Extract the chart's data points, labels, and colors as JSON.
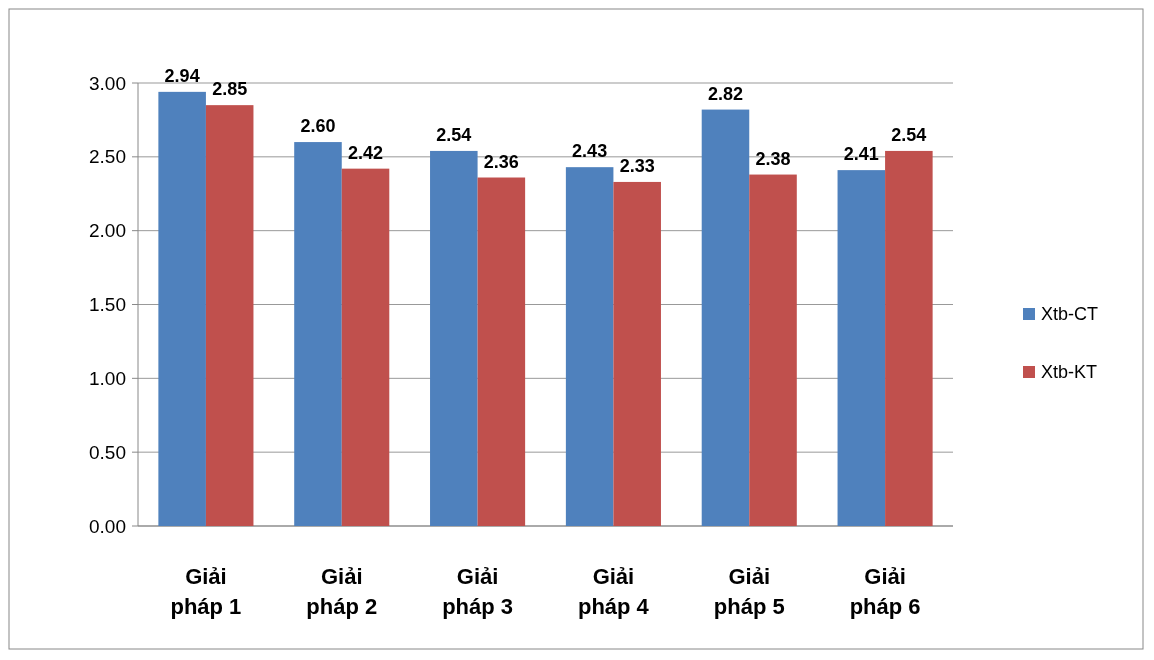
{
  "chart_data": {
    "type": "bar",
    "categories": [
      "Giải pháp 1",
      "Giải pháp 2",
      "Giải pháp 3",
      "Giải pháp 4",
      "Giải pháp 5",
      "Giải pháp 6"
    ],
    "series": [
      {
        "name": "Xtb-CT",
        "color": "#4f81bd",
        "values": [
          2.94,
          2.6,
          2.54,
          2.43,
          2.82,
          2.41
        ],
        "value_labels": [
          "2.94",
          "2.60",
          "2.54",
          "2.43",
          "2.82",
          "2.41"
        ]
      },
      {
        "name": "Xtb-KT",
        "color": "#c0504d",
        "values": [
          2.85,
          2.42,
          2.36,
          2.33,
          2.38,
          2.54
        ],
        "value_labels": [
          "2.85",
          "2.42",
          "2.36",
          "2.33",
          "2.38",
          "2.54"
        ]
      }
    ],
    "ylim": [
      0,
      3
    ],
    "yticks": [
      {
        "value": 0,
        "label": "0.00"
      },
      {
        "value": 0.5,
        "label": "0.50"
      },
      {
        "value": 1,
        "label": "1.00"
      },
      {
        "value": 1.5,
        "label": "1.50"
      },
      {
        "value": 2,
        "label": "2.00"
      },
      {
        "value": 2.5,
        "label": "2.50"
      },
      {
        "value": 3,
        "label": "3.00"
      }
    ],
    "grid": "y",
    "legend": "right"
  }
}
